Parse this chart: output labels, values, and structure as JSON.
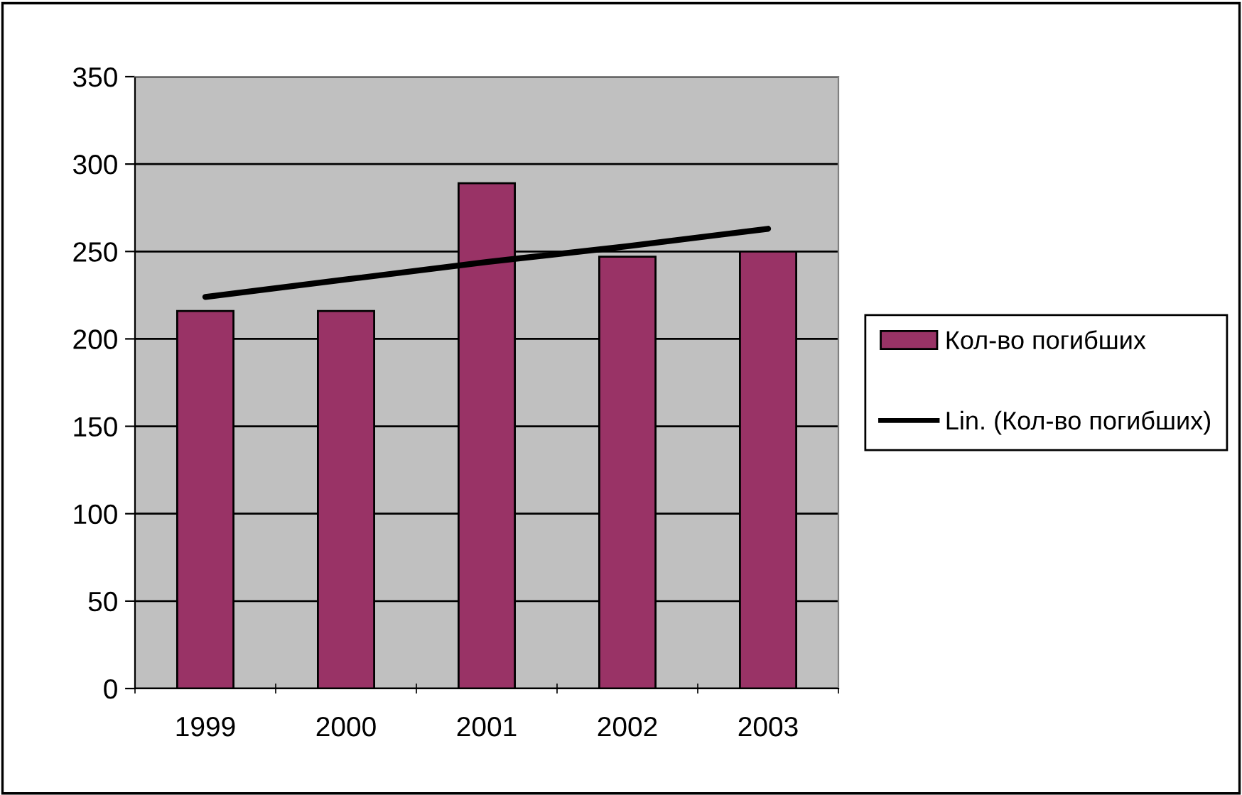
{
  "chart_data": {
    "type": "bar",
    "categories": [
      "1999",
      "2000",
      "2001",
      "2002",
      "2003"
    ],
    "series": [
      {
        "name": "Кол-во погибших",
        "color": "#993366",
        "values": [
          216,
          216,
          289,
          247,
          250
        ]
      },
      {
        "name": "Lin. (Кол-во погибших)",
        "type": "line",
        "color": "#000000",
        "values": [
          224,
          234,
          244,
          253,
          263
        ]
      }
    ],
    "ylim": [
      0,
      350
    ],
    "yticks": [
      0,
      50,
      100,
      150,
      200,
      250,
      300,
      350
    ],
    "grid": "y",
    "legend": "right"
  }
}
